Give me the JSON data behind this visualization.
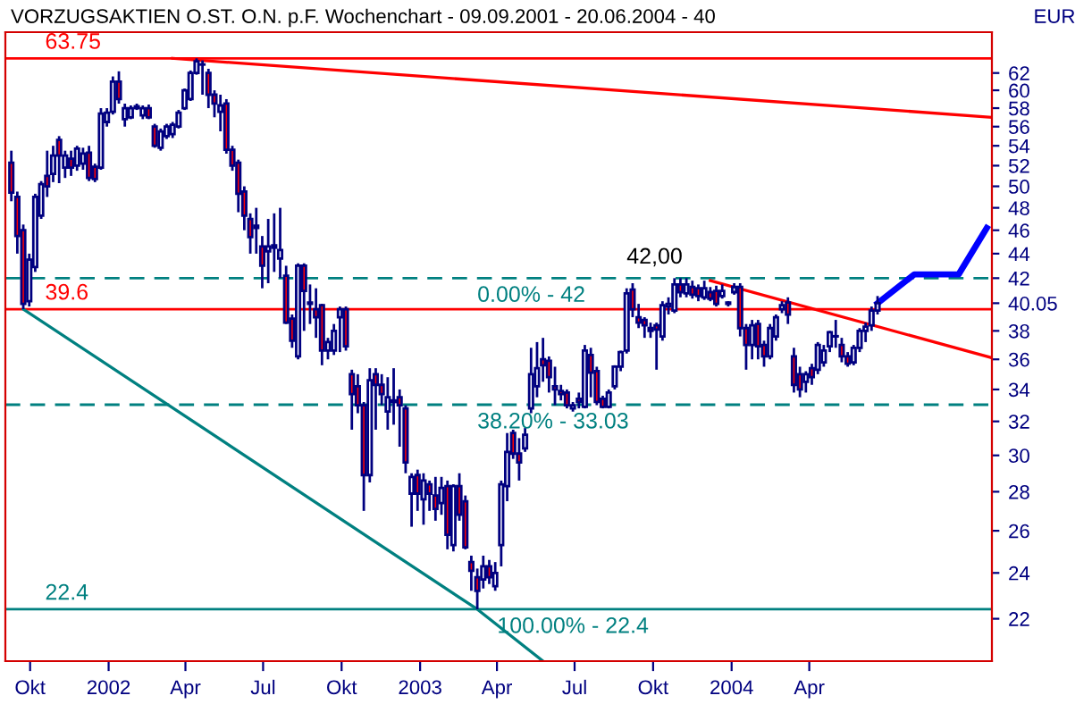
{
  "chart_data": {
    "type": "candlestick",
    "title": "VORZUGSAKTIEN O.ST. O.N. p.F. Wochenchart - 09.09.2001 - 20.06.2004 - 40",
    "ylabel": "EUR",
    "color": "#000080",
    "log": true,
    "x": [
      "2001-09-09",
      "2001-09-16",
      "2001-09-23",
      "2001-09-30",
      "2001-10-07",
      "2001-10-14",
      "2001-10-21",
      "2001-10-28",
      "2001-11-04",
      "2001-11-11",
      "2001-11-18",
      "2001-11-25",
      "2001-12-02",
      "2001-12-09",
      "2001-12-16",
      "2001-12-23",
      "2001-12-30",
      "2002-01-06",
      "2002-01-13",
      "2002-01-20",
      "2002-01-27",
      "2002-02-03",
      "2002-02-10",
      "2002-02-17",
      "2002-02-24",
      "2002-03-03",
      "2002-03-10",
      "2002-03-17",
      "2002-03-24",
      "2002-03-31",
      "2002-04-07",
      "2002-04-14",
      "2002-04-21",
      "2002-04-28",
      "2002-05-05",
      "2002-05-12",
      "2002-05-19",
      "2002-05-26",
      "2002-06-02",
      "2002-06-09",
      "2002-06-16",
      "2002-06-23",
      "2002-06-30",
      "2002-07-07",
      "2002-07-14",
      "2002-07-21",
      "2002-07-28",
      "2002-08-04",
      "2002-08-11",
      "2002-08-18",
      "2002-08-25",
      "2002-09-01",
      "2002-09-08",
      "2002-09-15",
      "2002-09-22",
      "2002-09-29",
      "2002-10-06",
      "2002-10-13",
      "2002-10-20",
      "2002-10-27",
      "2002-11-03",
      "2002-11-10",
      "2002-11-17",
      "2002-11-24",
      "2002-12-01",
      "2002-12-08",
      "2002-12-15",
      "2002-12-22",
      "2002-12-29",
      "2003-01-05",
      "2003-01-12",
      "2003-01-19",
      "2003-01-26",
      "2003-02-02",
      "2003-02-09",
      "2003-02-16",
      "2003-02-23",
      "2003-03-02",
      "2003-03-09",
      "2003-03-16",
      "2003-03-23",
      "2003-03-30",
      "2003-04-06",
      "2003-04-13",
      "2003-04-20",
      "2003-04-27",
      "2003-05-04",
      "2003-05-11",
      "2003-05-18",
      "2003-05-25",
      "2003-06-01",
      "2003-06-08",
      "2003-06-15",
      "2003-06-22",
      "2003-06-29",
      "2003-07-06",
      "2003-07-13",
      "2003-07-20",
      "2003-07-27",
      "2003-08-03",
      "2003-08-10",
      "2003-08-17",
      "2003-08-24",
      "2003-08-31",
      "2003-09-07",
      "2003-09-14",
      "2003-09-21",
      "2003-09-28",
      "2003-10-05",
      "2003-10-12",
      "2003-10-19",
      "2003-10-26",
      "2003-11-02",
      "2003-11-09",
      "2003-11-16",
      "2003-11-23",
      "2003-11-30",
      "2003-12-07",
      "2003-12-14",
      "2003-12-21",
      "2003-12-28",
      "2004-01-04",
      "2004-01-11",
      "2004-01-18",
      "2004-01-25",
      "2004-02-01",
      "2004-02-08",
      "2004-02-15",
      "2004-02-22",
      "2004-02-29",
      "2004-03-07",
      "2004-03-14",
      "2004-03-21",
      "2004-03-28",
      "2004-04-04",
      "2004-04-11",
      "2004-04-18",
      "2004-04-25",
      "2004-05-02",
      "2004-05-09",
      "2004-05-16",
      "2004-05-23",
      "2004-05-30",
      "2004-06-06",
      "2004-06-13",
      "2004-06-20"
    ],
    "ohlc": [
      [
        52.3,
        53.5,
        48.6,
        49.4
      ],
      [
        49.0,
        49.5,
        44.0,
        45.5
      ],
      [
        46.0,
        46.5,
        39.6,
        40.0
      ],
      [
        40.2,
        44.0,
        39.8,
        43.5
      ],
      [
        42.9,
        49.3,
        42.5,
        49.0
      ],
      [
        47.3,
        50.5,
        47.0,
        50.2
      ],
      [
        51.0,
        53.5,
        49.0,
        50.0
      ],
      [
        51.2,
        54.0,
        50.4,
        53.0
      ],
      [
        54.6,
        55.0,
        50.3,
        53.0
      ],
      [
        51.8,
        53.5,
        50.8,
        53.0
      ],
      [
        52.7,
        53.5,
        51.0,
        51.8
      ],
      [
        52.0,
        54.0,
        51.5,
        53.7
      ],
      [
        52.2,
        53.8,
        51.6,
        53.2
      ],
      [
        53.3,
        54.0,
        50.5,
        50.8
      ],
      [
        51.9,
        52.2,
        50.4,
        50.7
      ],
      [
        51.8,
        58.0,
        51.6,
        57.4
      ],
      [
        56.5,
        58.0,
        56.0,
        57.5
      ],
      [
        57.6,
        61.6,
        57.3,
        61.0
      ],
      [
        61.0,
        62.2,
        58.5,
        59.0
      ],
      [
        56.8,
        58.5,
        56.0,
        58.0
      ],
      [
        57.0,
        58.3,
        56.8,
        58.0
      ],
      [
        58.0,
        58.5,
        57.8,
        58.2
      ],
      [
        57.2,
        58.3,
        56.8,
        58.0
      ],
      [
        58.0,
        58.4,
        56.8,
        57.0
      ],
      [
        56.0,
        56.3,
        53.8,
        54.0
      ],
      [
        53.8,
        55.8,
        53.5,
        55.5
      ],
      [
        55.0,
        56.3,
        54.7,
        56.0
      ],
      [
        55.2,
        56.5,
        54.8,
        56.2
      ],
      [
        56.0,
        57.8,
        55.8,
        57.5
      ],
      [
        58.0,
        60.2,
        57.8,
        60.0
      ],
      [
        59.0,
        62.3,
        58.8,
        62.0
      ],
      [
        62.0,
        63.75,
        61.8,
        63.4
      ],
      [
        63.0,
        63.5,
        59.5,
        63.0
      ],
      [
        62.0,
        62.5,
        58.0,
        59.5
      ],
      [
        59.5,
        60.0,
        57.0,
        58.5
      ],
      [
        57.6,
        59.5,
        55.5,
        58.3
      ],
      [
        58.5,
        59.0,
        53.2,
        53.6
      ],
      [
        53.6,
        54.0,
        51.5,
        52.0
      ],
      [
        52.3,
        52.6,
        47.6,
        49.3
      ],
      [
        49.5,
        50.0,
        46.0,
        47.3
      ],
      [
        47.0,
        47.5,
        44.0,
        45.4
      ],
      [
        46.2,
        48.0,
        44.0,
        46.4
      ],
      [
        44.6,
        45.5,
        41.2,
        43.0
      ],
      [
        44.2,
        47.0,
        41.6,
        44.6
      ],
      [
        44.5,
        47.5,
        42.5,
        44.7
      ],
      [
        43.6,
        48.0,
        42.0,
        44.3
      ],
      [
        42.2,
        43.0,
        38.5,
        38.6
      ],
      [
        38.9,
        39.2,
        36.8,
        37.3
      ],
      [
        36.2,
        43.2,
        36.0,
        43.0
      ],
      [
        43.0,
        43.2,
        38.0,
        41.0
      ],
      [
        40.0,
        41.5,
        38.5,
        40.1
      ],
      [
        39.6,
        41.2,
        37.5,
        39.0
      ],
      [
        39.9,
        40.0,
        35.6,
        36.6
      ],
      [
        36.6,
        37.5,
        36.0,
        37.2
      ],
      [
        36.6,
        38.5,
        36.3,
        38.0
      ],
      [
        39.0,
        39.8,
        36.5,
        39.6
      ],
      [
        39.6,
        39.8,
        36.6,
        36.9
      ],
      [
        35.0,
        35.3,
        31.5,
        33.7
      ],
      [
        34.2,
        35.0,
        32.5,
        33.0
      ],
      [
        33.0,
        33.2,
        27.0,
        28.9
      ],
      [
        28.9,
        35.4,
        28.5,
        34.6
      ],
      [
        35.0,
        35.4,
        31.5,
        34.3
      ],
      [
        34.3,
        35.0,
        33.0,
        33.7
      ],
      [
        32.6,
        34.8,
        31.5,
        33.5
      ],
      [
        33.2,
        35.4,
        31.8,
        33.3
      ],
      [
        33.5,
        34.0,
        30.5,
        33.0
      ],
      [
        32.8,
        33.0,
        29.0,
        29.6
      ],
      [
        27.9,
        29.0,
        26.2,
        28.8
      ],
      [
        28.9,
        29.2,
        27.0,
        27.9
      ],
      [
        27.6,
        29.0,
        26.3,
        28.6
      ],
      [
        28.4,
        28.6,
        27.0,
        27.9
      ],
      [
        27.8,
        28.8,
        26.5,
        27.1
      ],
      [
        27.4,
        28.8,
        26.8,
        28.2
      ],
      [
        28.3,
        28.6,
        25.1,
        25.8
      ],
      [
        25.3,
        28.4,
        25.0,
        28.3
      ],
      [
        28.3,
        29.0,
        26.5,
        26.8
      ],
      [
        27.5,
        27.8,
        25.1,
        25.2
      ],
      [
        24.5,
        24.8,
        23.2,
        24.1
      ],
      [
        23.8,
        24.2,
        22.4,
        23.2
      ],
      [
        23.7,
        24.8,
        23.3,
        24.3
      ],
      [
        24.3,
        24.6,
        23.5,
        23.8
      ],
      [
        23.4,
        24.5,
        23.2,
        24.0
      ],
      [
        25.3,
        28.6,
        24.3,
        28.4
      ],
      [
        28.3,
        31.3,
        27.5,
        30.2
      ],
      [
        31.3,
        31.5,
        29.8,
        30.1
      ],
      [
        30.1,
        31.0,
        28.6,
        29.6
      ],
      [
        30.4,
        31.6,
        30.2,
        31.2
      ],
      [
        32.8,
        36.8,
        32.5,
        35.0
      ],
      [
        34.2,
        37.2,
        33.5,
        35.4
      ],
      [
        36.0,
        37.5,
        34.5,
        35.6
      ],
      [
        35.9,
        36.2,
        33.8,
        34.8
      ],
      [
        34.2,
        35.5,
        33.0,
        34.0
      ],
      [
        33.9,
        34.3,
        33.3,
        33.7
      ],
      [
        33.8,
        34.0,
        32.8,
        33.0
      ],
      [
        32.8,
        33.2,
        32.6,
        33.0
      ],
      [
        33.4,
        33.8,
        32.8,
        33.2
      ],
      [
        32.9,
        37.0,
        32.8,
        36.6
      ],
      [
        36.3,
        36.8,
        33.5,
        35.1
      ],
      [
        35.2,
        35.5,
        33.0,
        33.2
      ],
      [
        33.4,
        33.6,
        32.8,
        32.9
      ],
      [
        32.9,
        34.0,
        32.8,
        33.8
      ],
      [
        34.2,
        35.6,
        34.0,
        35.5
      ],
      [
        35.5,
        36.6,
        35.2,
        36.5
      ],
      [
        36.6,
        41.2,
        36.4,
        40.8
      ],
      [
        41.1,
        41.6,
        39.0,
        39.6
      ],
      [
        39.0,
        40.0,
        38.2,
        38.6
      ],
      [
        38.8,
        39.0,
        37.5,
        38.4
      ],
      [
        38.2,
        38.6,
        37.5,
        38.0
      ],
      [
        38.4,
        38.6,
        35.3,
        38.1
      ],
      [
        37.6,
        40.2,
        37.3,
        39.9
      ],
      [
        39.8,
        40.5,
        39.2,
        40.0
      ],
      [
        39.5,
        42.0,
        39.3,
        41.5
      ],
      [
        41.5,
        42.0,
        40.5,
        40.9
      ],
      [
        40.8,
        42.0,
        40.5,
        41.5
      ],
      [
        41.3,
        41.8,
        40.4,
        40.7
      ],
      [
        41.2,
        41.5,
        40.2,
        40.6
      ],
      [
        40.5,
        41.8,
        40.3,
        41.2
      ],
      [
        40.9,
        41.3,
        40.2,
        40.4
      ],
      [
        41.0,
        41.4,
        39.8,
        40.0
      ],
      [
        40.6,
        41.5,
        40.4,
        41.0
      ],
      [
        40.0,
        40.2,
        39.8,
        40.1
      ],
      [
        40.9,
        41.6,
        40.7,
        41.3
      ],
      [
        41.3,
        41.6,
        37.6,
        38.2
      ],
      [
        38.2,
        38.5,
        35.3,
        37.0
      ],
      [
        37.0,
        38.8,
        36.0,
        38.4
      ],
      [
        38.5,
        38.8,
        36.0,
        36.9
      ],
      [
        37.0,
        37.3,
        35.5,
        36.2
      ],
      [
        36.2,
        38.5,
        36.0,
        38.2
      ],
      [
        37.6,
        39.2,
        37.3,
        39.0
      ],
      [
        39.6,
        40.2,
        39.3,
        39.9
      ],
      [
        40.1,
        40.5,
        38.5,
        39.2
      ],
      [
        36.2,
        36.8,
        33.8,
        34.3
      ],
      [
        35.0,
        35.5,
        33.5,
        34.0
      ],
      [
        34.5,
        35.2,
        33.8,
        35.0
      ],
      [
        35.4,
        35.7,
        34.3,
        34.8
      ],
      [
        35.3,
        37.2,
        35.0,
        37.0
      ],
      [
        35.8,
        37.0,
        35.5,
        36.6
      ],
      [
        36.9,
        38.0,
        36.5,
        37.9
      ],
      [
        37.6,
        38.8,
        36.8,
        37.6
      ],
      [
        37.0,
        37.5,
        35.8,
        36.2
      ],
      [
        36.2,
        36.5,
        35.5,
        35.7
      ],
      [
        35.8,
        37.0,
        35.6,
        36.8
      ],
      [
        36.8,
        38.2,
        36.5,
        38.0
      ],
      [
        38.0,
        38.6,
        37.2,
        38.3
      ],
      [
        38.4,
        39.8,
        38.0,
        39.5
      ],
      [
        39.5,
        40.6,
        39.2,
        40.05
      ]
    ],
    "series": [
      {
        "type": "line",
        "x": [
          "2002-03-17",
          "2004-11-01"
        ],
        "values": [
          63.75,
          57.0
        ],
        "color": "#ff0000"
      },
      {
        "type": "line",
        "x": [
          "2003-12-07",
          "2004-11-01"
        ],
        "values": [
          41.8,
          36.1
        ],
        "color": "#ff0000"
      },
      {
        "type": "line",
        "x": [
          "2001-09-23",
          "2003-03-09",
          "2003-05-25"
        ],
        "values": [
          39.6,
          22.4,
          20.3
        ],
        "color": "#008080"
      },
      {
        "type": "line",
        "x": [
          "2004-06-20",
          "2004-08-02",
          "2004-09-23",
          "2004-10-26"
        ],
        "values": [
          40.05,
          42.3,
          42.3,
          46.2
        ],
        "color": "#0000ff"
      }
    ],
    "ref_lines": [
      {
        "axis": "y",
        "value": 63.75,
        "label": "63.75",
        "color": "#ff0000"
      },
      {
        "axis": "y",
        "value": 39.6,
        "label": "39.6",
        "color": "#ff0000"
      },
      {
        "axis": "y",
        "value": 42,
        "color": "#008080",
        "line_style": "dashed"
      },
      {
        "axis": "y",
        "value": 33.03,
        "color": "#008080",
        "line_style": "dashed"
      },
      {
        "axis": "y",
        "value": 22.4,
        "label": "22.4",
        "color": "#008080"
      }
    ],
    "annotations": [
      {
        "text": "42,00",
        "x": "2003-08-31",
        "y": 42.0
      },
      {
        "text": "0.00% - 42",
        "x": "2003-03-09",
        "y": 42.0
      },
      {
        "text": "38.20% - 33.03",
        "x": "2003-03-09",
        "y": 33.03
      },
      {
        "text": "100.00% - 22.4",
        "x": "2003-03-09",
        "y": 22.4
      }
    ],
    "xlim": [
      "2001-09-02",
      "2004-11-01"
    ],
    "xticks": [
      {
        "value": "2001-10-01",
        "label": "Okt"
      },
      {
        "value": "2002-01-01",
        "label": "2002"
      },
      {
        "value": "2002-04-01",
        "label": "Apr"
      },
      {
        "value": "2002-07-01",
        "label": "Jul"
      },
      {
        "value": "2002-10-01",
        "label": "Okt"
      },
      {
        "value": "2003-01-01",
        "label": "2003"
      },
      {
        "value": "2003-04-01",
        "label": "Apr"
      },
      {
        "value": "2003-07-01",
        "label": "Jul"
      },
      {
        "value": "2003-10-01",
        "label": "Okt"
      },
      {
        "value": "2004-01-01",
        "label": "2004"
      },
      {
        "value": "2004-04-01",
        "label": "Apr"
      }
    ],
    "ylim": [
      20.3,
      67
    ],
    "yticks": [
      22,
      24,
      26,
      28,
      30,
      32,
      34,
      36,
      38,
      40.05,
      42,
      44,
      46,
      48,
      50,
      52,
      54,
      56,
      58,
      60,
      62
    ]
  }
}
